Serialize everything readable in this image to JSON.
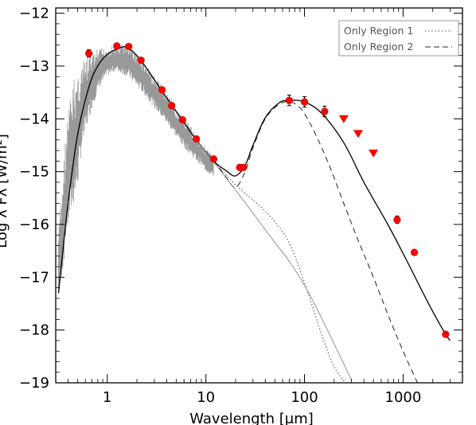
{
  "chart_data": {
    "type": "scatter",
    "title": "",
    "xlabel": "Wavelength [μm]",
    "ylabel": "Log λ Fλ [W/m²]",
    "xscale": "log",
    "xlim": [
      0.3,
      4000
    ],
    "ylim": [
      -19,
      -11.9
    ],
    "x_ticks": [
      1,
      10,
      100,
      1000
    ],
    "x_tick_labels": [
      "1",
      "10",
      "100",
      "1000"
    ],
    "y_ticks": [
      -19,
      -18,
      -17,
      -16,
      -15,
      -14,
      -13,
      -12
    ],
    "y_tick_labels": [
      "−19",
      "−18",
      "−17",
      "−16",
      "−15",
      "−14",
      "−13",
      "−12"
    ],
    "grid": false,
    "legend_position": "top-right",
    "legend": [
      {
        "label": "Only Region 1",
        "style": "dotted"
      },
      {
        "label": "Only Region 2",
        "style": "dashed"
      }
    ],
    "photometry": {
      "x": [
        0.65,
        1.25,
        1.65,
        2.2,
        3.6,
        4.5,
        5.8,
        8.0,
        12,
        22,
        24,
        70,
        100,
        160,
        870,
        1300,
        2700
      ],
      "y": [
        -12.76,
        -12.62,
        -12.63,
        -12.89,
        -13.45,
        -13.75,
        -14.02,
        -14.38,
        -14.76,
        -14.92,
        -14.92,
        -13.65,
        -13.68,
        -13.86,
        -15.91,
        -16.53,
        -18.08
      ],
      "yerr": [
        0.07,
        0.04,
        0.04,
        0.04,
        0.04,
        0.04,
        0.04,
        0.04,
        0.04,
        0.04,
        0.04,
        0.1,
        0.1,
        0.1,
        0.07,
        0.05,
        0.05
      ],
      "color": "#ff0000"
    },
    "upper_limits": {
      "x": [
        250,
        350,
        500
      ],
      "y": [
        -14.0,
        -14.28,
        -14.65
      ],
      "color": "#ff0000"
    },
    "series": [
      {
        "name": "Only Region 1",
        "style": "dotted",
        "x": [
          0.32,
          0.35,
          0.4,
          0.5,
          0.65,
          0.8,
          1.0,
          1.3,
          1.6,
          2.2,
          3.6,
          5.8,
          8,
          12,
          20,
          35,
          50,
          70,
          100,
          150,
          200,
          260
        ],
        "y": [
          -17.3,
          -16.6,
          -15.6,
          -14.3,
          -13.4,
          -13.0,
          -12.78,
          -12.67,
          -12.65,
          -12.9,
          -13.48,
          -14.03,
          -14.4,
          -14.8,
          -15.25,
          -15.65,
          -15.95,
          -16.35,
          -17.1,
          -18.1,
          -18.7,
          -19.0
        ]
      },
      {
        "name": "Only Region 2",
        "style": "dashed",
        "x": [
          12,
          16,
          20,
          25,
          30,
          40,
          55,
          70,
          85,
          100,
          130,
          180,
          250,
          350,
          500,
          700,
          1000,
          1400
        ],
        "y": [
          -14.78,
          -15.1,
          -15.3,
          -15.0,
          -14.55,
          -14.0,
          -13.73,
          -13.67,
          -13.75,
          -13.9,
          -14.3,
          -14.9,
          -15.6,
          -16.3,
          -17.0,
          -17.7,
          -18.4,
          -19.0
        ]
      },
      {
        "name": "",
        "style": "solid",
        "x": [
          0.32,
          0.35,
          0.4,
          0.5,
          0.65,
          0.8,
          1.0,
          1.3,
          1.6,
          2.2,
          3.6,
          5.8,
          8,
          12,
          16,
          20,
          25,
          30,
          40,
          55,
          70,
          100,
          150,
          250,
          400,
          700,
          1000,
          1500,
          2000,
          2700,
          3000
        ],
        "y": [
          -17.3,
          -16.6,
          -15.6,
          -14.3,
          -13.4,
          -13.0,
          -12.78,
          -12.67,
          -12.65,
          -12.9,
          -13.48,
          -14.03,
          -14.4,
          -14.8,
          -14.98,
          -15.08,
          -14.88,
          -14.5,
          -13.98,
          -13.7,
          -13.65,
          -13.68,
          -13.9,
          -14.45,
          -15.2,
          -16.0,
          -16.55,
          -17.2,
          -17.65,
          -18.08,
          -18.2
        ]
      },
      {
        "name": "",
        "style": "thin-solid",
        "x": [
          8,
          12,
          20,
          40,
          100,
          300
        ],
        "y": [
          -14.4,
          -14.82,
          -15.35,
          -16.1,
          -17.15,
          -18.95
        ]
      }
    ],
    "spectrum_band": {
      "color": "#999999",
      "x": [
        0.32,
        0.34,
        0.36,
        0.38,
        0.4,
        0.43,
        0.46,
        0.5,
        0.55,
        0.6,
        0.65,
        0.7,
        0.8,
        0.9,
        1.0,
        1.2,
        1.4,
        1.6,
        2.0,
        2.5,
        3.0,
        4.0,
        5.0,
        6.0,
        8.0,
        10.0,
        12.0
      ],
      "ymin": [
        -17.4,
        -17.1,
        -16.8,
        -16.3,
        -16.1,
        -15.8,
        -15.6,
        -15.3,
        -14.6,
        -14.3,
        -14.0,
        -13.8,
        -13.5,
        -13.3,
        -13.2,
        -13.1,
        -13.15,
        -13.2,
        -13.4,
        -13.6,
        -13.8,
        -14.1,
        -14.35,
        -14.55,
        -14.8,
        -15.0,
        -15.1
      ],
      "ymax": [
        -16.0,
        -15.4,
        -14.7,
        -14.1,
        -13.7,
        -13.35,
        -13.1,
        -12.95,
        -12.85,
        -12.8,
        -12.72,
        -12.68,
        -12.64,
        -12.62,
        -12.6,
        -12.58,
        -12.55,
        -12.5,
        -12.7,
        -12.95,
        -13.15,
        -13.45,
        -13.75,
        -13.95,
        -14.25,
        -14.5,
        -14.7
      ]
    }
  }
}
